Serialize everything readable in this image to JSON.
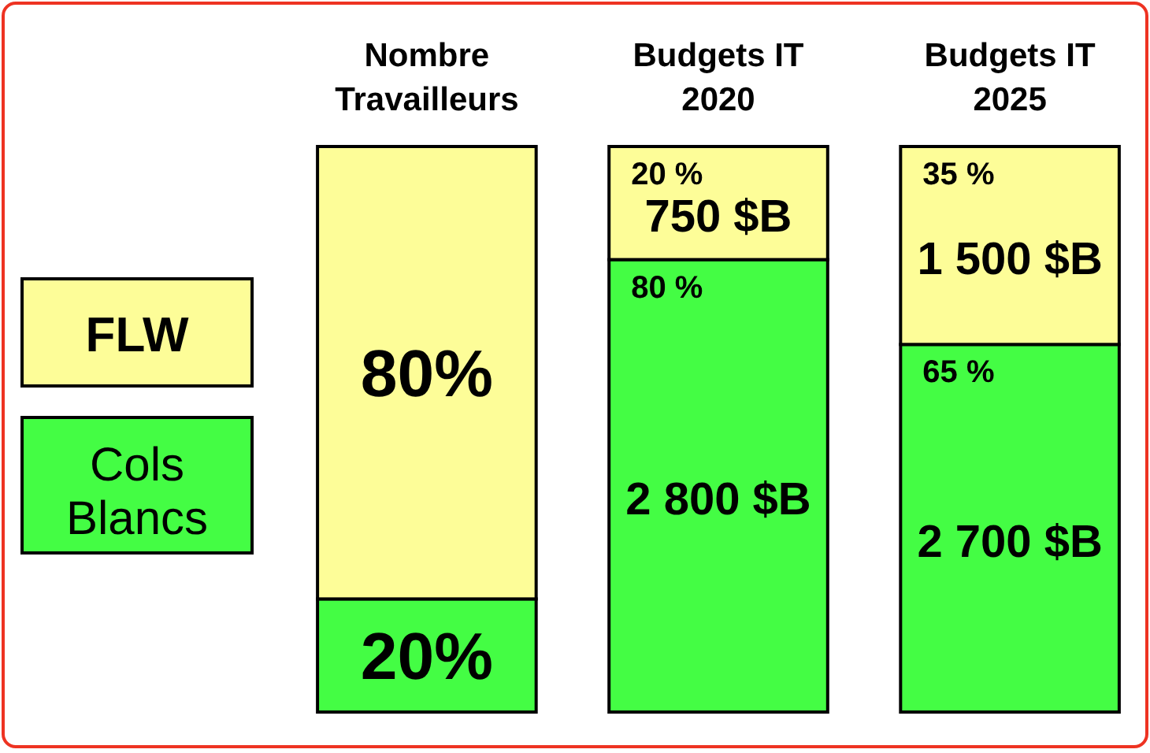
{
  "chart_data": {
    "type": "bar",
    "stacked": true,
    "categories": [
      "Nombre Travailleurs",
      "Budgets IT 2020",
      "Budgets IT 2025"
    ],
    "series": [
      {
        "name": "Cols Blancs",
        "color": "#44fd44",
        "values": [
          20,
          80,
          65
        ],
        "value_labels": [
          "20%",
          "80 %",
          "65 %"
        ]
      },
      {
        "name": "FLW",
        "color": "#fdfd98",
        "values": [
          80,
          20,
          35
        ],
        "value_labels": [
          "80%",
          "20 %",
          "35 %"
        ]
      }
    ],
    "legend": "left",
    "annotations": [
      "750 $B",
      "2 800 $B",
      "1 500 $B",
      "2 700 $B"
    ]
  }
}
